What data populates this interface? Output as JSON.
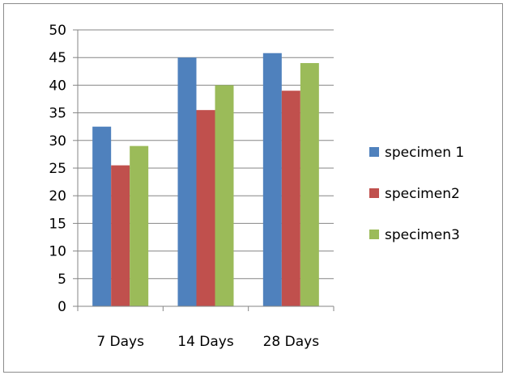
{
  "chart_data": {
    "type": "bar",
    "categories": [
      "7 Days",
      "14 Days",
      "28 Days"
    ],
    "series": [
      {
        "name": "specimen 1",
        "color": "#4f81bd",
        "values": [
          32.5,
          45,
          45.8
        ]
      },
      {
        "name": "specimen2",
        "color": "#c0504d",
        "values": [
          25.5,
          35.5,
          39
        ]
      },
      {
        "name": "specimen3",
        "color": "#9bbb59",
        "values": [
          29,
          40,
          44
        ]
      }
    ],
    "title": "",
    "xlabel": "",
    "ylabel": "",
    "ylim": [
      0,
      50
    ],
    "yticks": [
      0,
      5,
      10,
      15,
      20,
      25,
      30,
      35,
      40,
      45,
      50
    ],
    "grid": true,
    "legend_position": "right"
  }
}
